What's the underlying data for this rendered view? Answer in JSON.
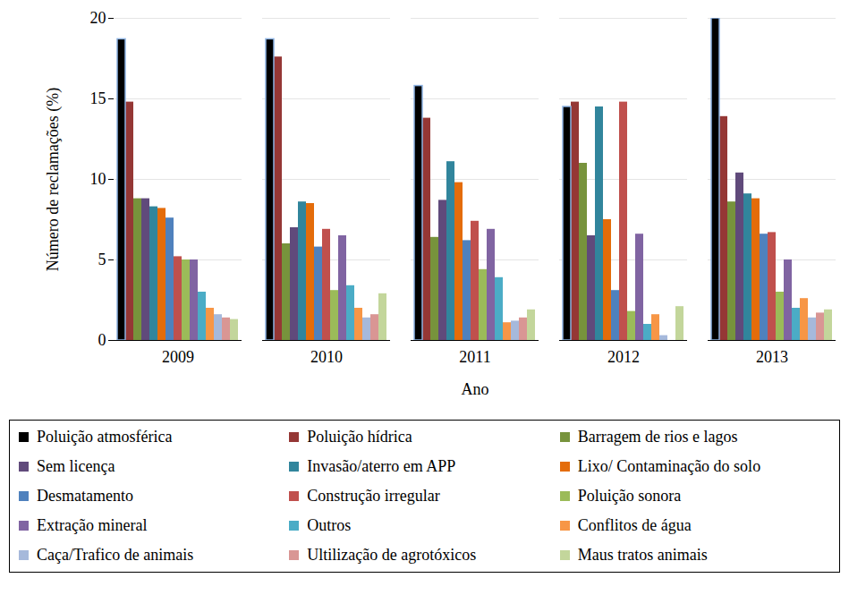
{
  "chart_data": {
    "type": "bar",
    "x_label": "Ano",
    "y_label": "Número de reclamações (%)",
    "categories": [
      "2009",
      "2010",
      "2011",
      "2012",
      "2013"
    ],
    "ylim": [
      0,
      20
    ],
    "yticks": [
      0,
      5,
      10,
      15,
      20
    ],
    "grid": true,
    "legend": "bottom",
    "series": [
      {
        "name": "Poluição atmosférica",
        "color": "#000000",
        "values": [
          18.7,
          18.7,
          15.8,
          14.5,
          20.0
        ]
      },
      {
        "name": "Poluição hídrica",
        "color": "#953735",
        "values": [
          14.8,
          17.6,
          13.8,
          14.8,
          13.9
        ]
      },
      {
        "name": "Barragem de rios e lagos",
        "color": "#77933C",
        "values": [
          8.8,
          6.0,
          6.4,
          11.0,
          8.6
        ]
      },
      {
        "name": "Sem licença",
        "color": "#604A7B",
        "values": [
          8.8,
          7.0,
          8.7,
          6.5,
          10.4
        ]
      },
      {
        "name": "Invasão/aterro em APP",
        "color": "#31859C",
        "values": [
          8.3,
          8.6,
          11.1,
          14.5,
          9.1
        ]
      },
      {
        "name": "Lixo/ Contaminação do solo",
        "color": "#E46C0A",
        "values": [
          8.2,
          8.5,
          9.8,
          7.5,
          8.8
        ]
      },
      {
        "name": "Desmatamento",
        "color": "#4F81BD",
        "values": [
          7.6,
          5.8,
          6.2,
          3.1,
          6.6
        ]
      },
      {
        "name": "Construção irregular",
        "color": "#C0504D",
        "values": [
          5.2,
          6.9,
          7.4,
          14.8,
          6.7
        ]
      },
      {
        "name": "Poluição sonora",
        "color": "#9BBB59",
        "values": [
          5.0,
          3.1,
          4.4,
          1.8,
          3.0
        ]
      },
      {
        "name": "Extração mineral",
        "color": "#8064A2",
        "values": [
          5.0,
          6.5,
          6.9,
          6.6,
          5.0
        ]
      },
      {
        "name": "Outros",
        "color": "#4BACC6",
        "values": [
          3.0,
          3.4,
          3.9,
          1.0,
          2.0
        ]
      },
      {
        "name": "Conflitos de água",
        "color": "#F79646",
        "values": [
          2.0,
          2.0,
          1.1,
          1.6,
          2.6
        ]
      },
      {
        "name": "Caça/Trafico de animais",
        "color": "#A6B9DB",
        "values": [
          1.6,
          1.4,
          1.2,
          0.3,
          1.4
        ]
      },
      {
        "name": "Ultilização de agrotóxicos",
        "color": "#D99694",
        "values": [
          1.4,
          1.6,
          1.4,
          0,
          1.7
        ]
      },
      {
        "name": "Maus tratos animais",
        "color": "#C3D69B",
        "values": [
          1.3,
          2.9,
          1.9,
          2.1,
          1.9
        ]
      }
    ]
  }
}
